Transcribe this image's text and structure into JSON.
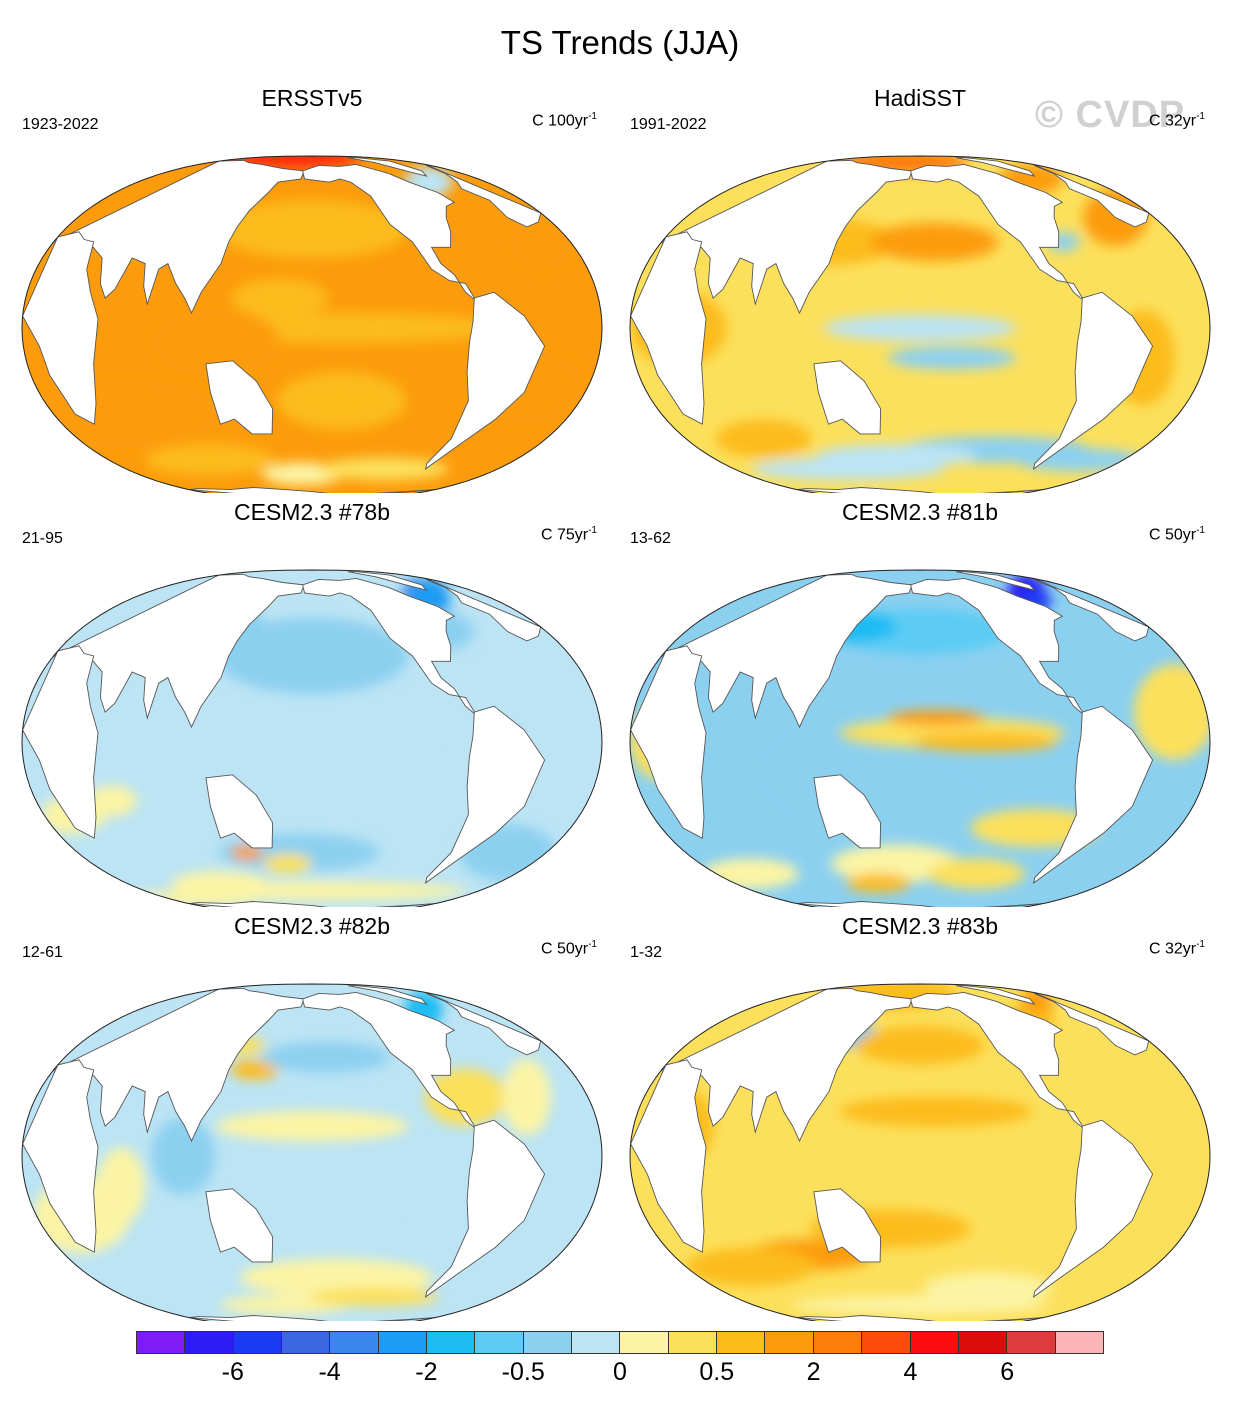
{
  "title": "TS Trends (JJA)",
  "watermark": "© CVDP",
  "panels": [
    {
      "id": "ersst",
      "name": "ERSSTv5",
      "period": "1923-2022",
      "units": "C 100yr",
      "exp": "-1",
      "regime": "warm_strong"
    },
    {
      "id": "hadisst",
      "name": "HadiSST",
      "period": "1991-2022",
      "units": "C 32yr",
      "exp": "-1",
      "regime": "mixed_warm"
    },
    {
      "id": "m78",
      "name": "CESM2.3 #78b",
      "period": "21-95",
      "units": "C 75yr",
      "exp": "-1",
      "regime": "cool"
    },
    {
      "id": "m81",
      "name": "CESM2.3 #81b",
      "period": "13-62",
      "units": "C 50yr",
      "exp": "-1",
      "regime": "enso_warm"
    },
    {
      "id": "m82",
      "name": "CESM2.3 #82b",
      "period": "12-61",
      "units": "C 50yr",
      "exp": "-1",
      "regime": "neutral"
    },
    {
      "id": "m83",
      "name": "CESM2.3 #83b",
      "period": "1-32",
      "units": "C 32yr",
      "exp": "-1",
      "regime": "warm_mod"
    }
  ],
  "colorbar": {
    "colors": [
      "#7d1cf4",
      "#2e1cf4",
      "#1c3cf4",
      "#3a66e0",
      "#3a86ec",
      "#1c9cf4",
      "#1cbcf4",
      "#5cccf4",
      "#8cd0f0",
      "#bce4f4",
      "#fcf4a4",
      "#fce05c",
      "#fcbc1c",
      "#fc9c0c",
      "#fc7c0c",
      "#fc4c0c",
      "#fc0c0c",
      "#dc0c0c",
      "#dc3c3c",
      "#fcb4b4"
    ],
    "labels": [
      "-6",
      "-4",
      "-2",
      "-0.5",
      "0",
      "0.5",
      "2",
      "4",
      "6"
    ]
  }
}
